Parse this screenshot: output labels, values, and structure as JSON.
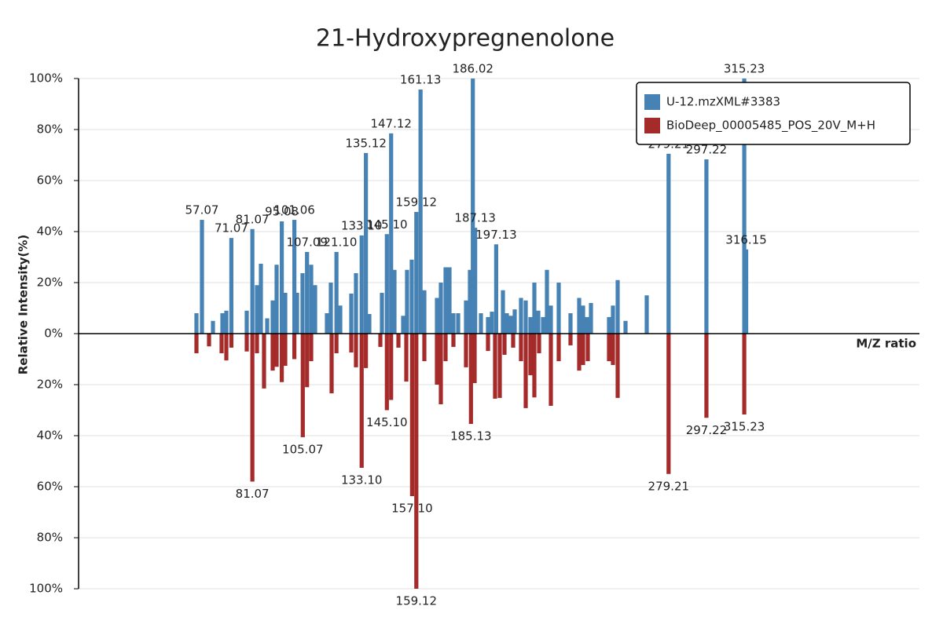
{
  "chart_data": {
    "type": "bar",
    "title": "21-Hydroxypregnenolone",
    "x_label": "M/Z ratio",
    "y_label": "Relative Intensity(%)",
    "xlim": [
      -1.66,
      398.62
    ],
    "ylim": [
      -100,
      100
    ],
    "yticks": [
      {
        "value": -100,
        "label": "100%"
      },
      {
        "value": -80,
        "label": "80%"
      },
      {
        "value": -60,
        "label": "60%"
      },
      {
        "value": -40,
        "label": "40%"
      },
      {
        "value": -20,
        "label": "20%"
      },
      {
        "value": 0,
        "label": "0%"
      },
      {
        "value": 20,
        "label": "20%"
      },
      {
        "value": 40,
        "label": "40%"
      },
      {
        "value": 60,
        "label": "60%"
      },
      {
        "value": 80,
        "label": "80%"
      },
      {
        "value": 100,
        "label": "100%"
      }
    ],
    "grid": true,
    "legend": "top-right",
    "series": [
      {
        "name": "U-12.mzXML#3383",
        "color": "#4682b4",
        "x": [
          54.45,
          57.07,
          62.31,
          66.8,
          68.67,
          71.07,
          78.39,
          81.07,
          83.26,
          85.13,
          88.12,
          90.74,
          92.61,
          95.08,
          96.72,
          101.06,
          102.34,
          104.95,
          107.09,
          109.07,
          110.94,
          116.55,
          118.42,
          121.1,
          122.91,
          128.15,
          130.39,
          133.1,
          135.12,
          136.75,
          142.74,
          145.1,
          147.12,
          148.72,
          152.84,
          154.71,
          156.95,
          159.12,
          161.13,
          162.94,
          168.93,
          170.8,
          173.04,
          174.91,
          176.78,
          179.03,
          182.77,
          184.64,
          186.02,
          187.13,
          189.88,
          193.24,
          195.11,
          197.13,
          200.35,
          202.22,
          204.09,
          205.96,
          208.95,
          211.2,
          213.44,
          215.31,
          217.18,
          219.43,
          221.3,
          223.17,
          226.91,
          232.52,
          236.64,
          238.51,
          240.38,
          242.25,
          250.85,
          252.72,
          254.97,
          258.71,
          268.81,
          279.21,
          297.22,
          315.23,
          316.15
        ],
        "values": [
          8,
          44.6,
          5,
          8,
          9,
          37.5,
          9,
          41,
          19,
          27.4,
          6,
          13,
          27,
          44,
          16,
          44.6,
          16,
          23.7,
          32,
          27,
          19,
          8,
          20,
          32,
          11,
          15.7,
          23.7,
          38.5,
          70.8,
          7.7,
          16,
          39,
          78.5,
          25,
          7,
          25,
          29,
          47.7,
          95.7,
          17,
          14,
          20,
          26,
          26,
          8,
          8,
          13,
          25,
          100,
          41.5,
          8,
          6.5,
          8.6,
          35,
          17,
          8,
          7,
          9.5,
          14,
          13,
          6.5,
          20,
          9,
          6.5,
          25,
          11,
          20,
          8,
          14,
          11,
          6.5,
          12,
          6.5,
          11,
          21,
          5,
          15,
          70.5,
          68.3,
          100,
          33
        ],
        "labels": [
          null,
          "57.07",
          null,
          null,
          null,
          "71.07",
          null,
          "81.07",
          null,
          null,
          null,
          null,
          null,
          "95.08",
          null,
          "101.06",
          null,
          null,
          "107.09",
          null,
          null,
          null,
          null,
          "121.10",
          null,
          null,
          null,
          "133.10",
          "135.12",
          null,
          null,
          "145.10",
          "147.12",
          null,
          null,
          null,
          null,
          "159.12",
          "161.13",
          null,
          null,
          null,
          null,
          null,
          null,
          null,
          null,
          null,
          "186.02",
          "187.13",
          null,
          null,
          null,
          "197.13",
          null,
          null,
          null,
          null,
          null,
          null,
          null,
          null,
          null,
          null,
          null,
          null,
          null,
          null,
          null,
          null,
          null,
          null,
          null,
          null,
          null,
          null,
          null,
          "279.21",
          "297.22",
          "315.23",
          "316.15"
        ]
      },
      {
        "name": "BioDeep_00005485_POS_20V_M+H",
        "color": "#a52a2a",
        "x": [
          54.45,
          60.44,
          66.42,
          68.67,
          71.07,
          78.39,
          81.07,
          83.26,
          86.62,
          90.74,
          92.61,
          95.08,
          96.72,
          101.06,
          105.07,
          107.09,
          109.07,
          118.8,
          121.1,
          128.15,
          130.39,
          133.1,
          135.12,
          141.99,
          145.1,
          147.12,
          150.6,
          154.34,
          157.1,
          159.12,
          162.94,
          168.93,
          170.8,
          173.04,
          176.78,
          182.77,
          185.13,
          186.88,
          193.24,
          196.61,
          198.85,
          201.1,
          205.21,
          208.95,
          211.2,
          213.44,
          215.31,
          217.56,
          223.17,
          226.91,
          232.52,
          236.64,
          238.51,
          240.75,
          250.85,
          252.72,
          254.97,
          279.21,
          297.22,
          315.23
        ],
        "values": [
          -7.7,
          -5,
          -7.7,
          -10.5,
          -5.5,
          -7,
          -58,
          -7.7,
          -21.5,
          -14.5,
          -13,
          -19,
          -12.6,
          -10,
          -40.6,
          -21,
          -10.8,
          -23.4,
          -7.7,
          -7.4,
          -13.2,
          -52.6,
          -13.5,
          -5.2,
          -30,
          -26,
          -5.5,
          -18.8,
          -63.7,
          -100,
          -10.8,
          -20,
          -27.7,
          -10.8,
          -5.2,
          -13.2,
          -35.4,
          -19.4,
          -6.8,
          -25.5,
          -25.2,
          -8.3,
          -5.5,
          -10.8,
          -29.2,
          -16.3,
          -25,
          -7.7,
          -28.3,
          -10.8,
          -4.6,
          -14.5,
          -12.3,
          -10.8,
          -10.8,
          -12.3,
          -25.2,
          -55,
          -33,
          -31.7
        ],
        "labels": [
          null,
          null,
          null,
          null,
          null,
          null,
          "81.07",
          null,
          null,
          null,
          null,
          null,
          null,
          null,
          "105.07",
          null,
          null,
          null,
          null,
          null,
          null,
          "133.10",
          null,
          null,
          "145.10",
          null,
          null,
          null,
          "157.10",
          "159.12",
          null,
          null,
          null,
          null,
          null,
          null,
          "185.13",
          null,
          null,
          null,
          null,
          null,
          null,
          null,
          null,
          null,
          null,
          null,
          null,
          null,
          null,
          null,
          null,
          null,
          null,
          null,
          null,
          "279.21",
          "297.22",
          "315.23"
        ]
      }
    ]
  }
}
